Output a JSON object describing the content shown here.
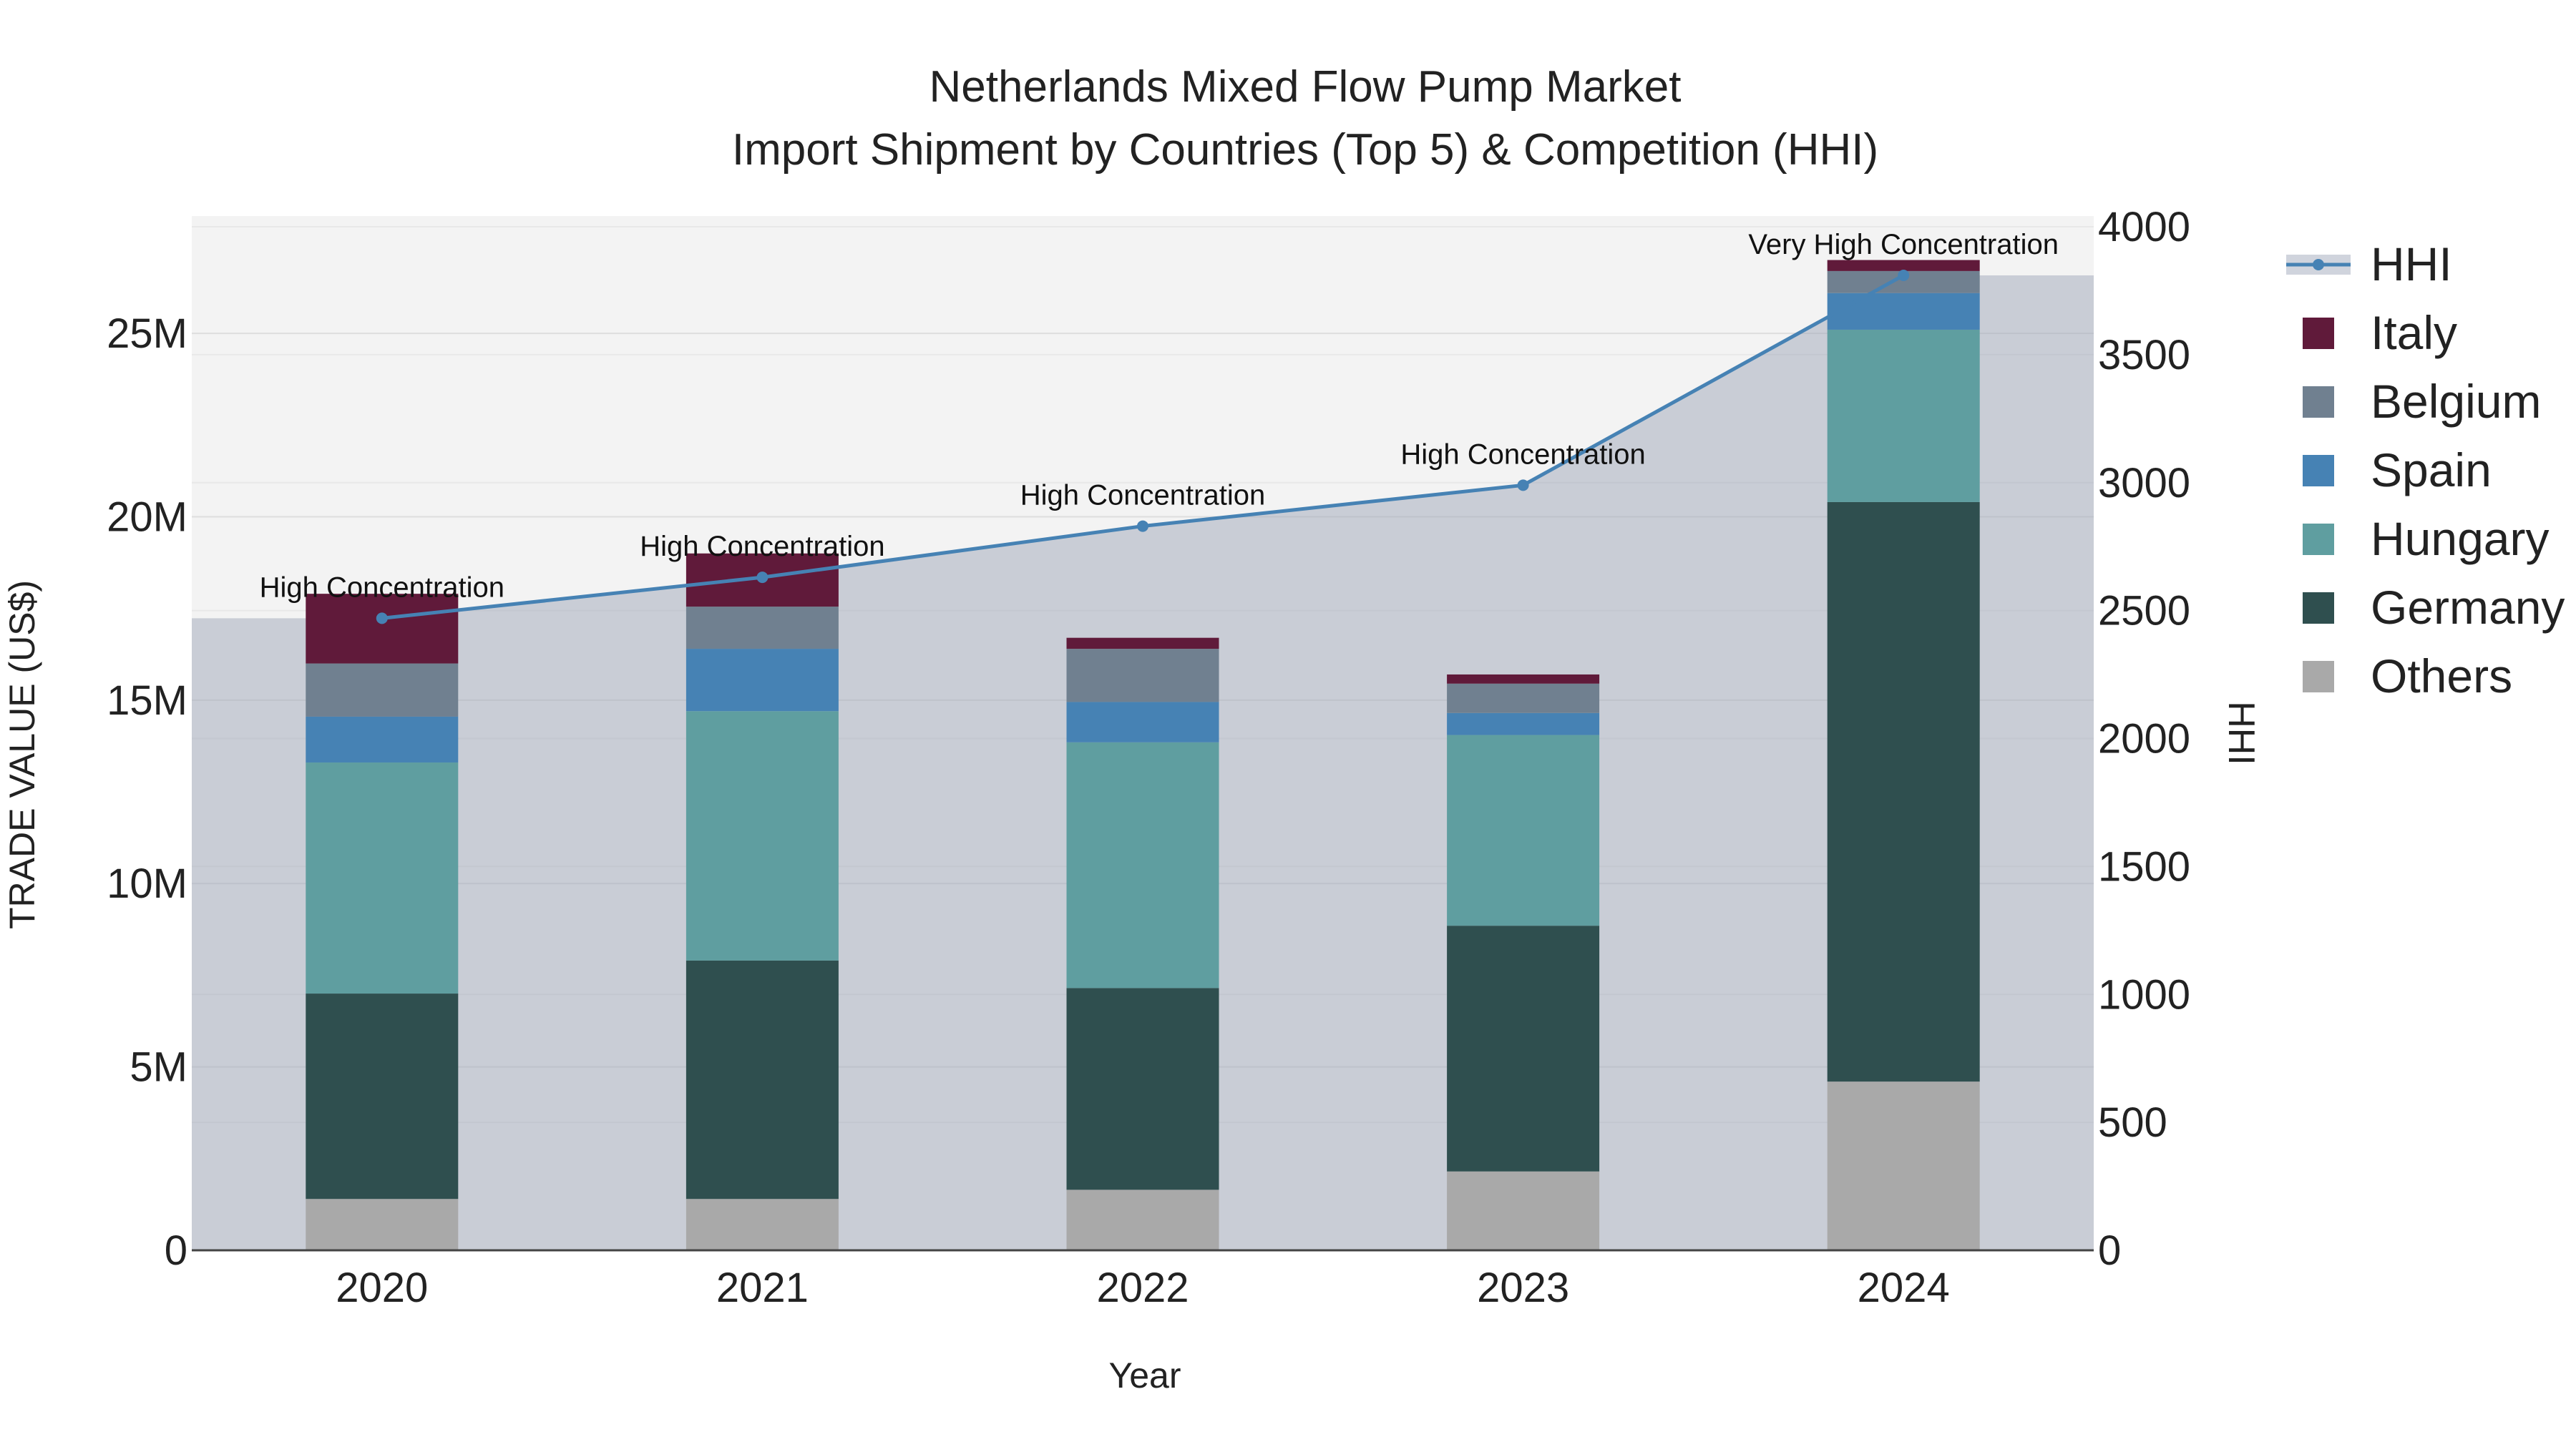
{
  "chart_data": {
    "type": "bar",
    "stacked": true,
    "title_line1": "Netherlands Mixed Flow Pump Market",
    "title_line2": "Import Shipment by Countries (Top 5) & Competition (HHI)",
    "xlabel": "Year",
    "ylabel": "TRADE VALUE (US$)",
    "y2label": "HHI",
    "categories": [
      "2020",
      "2021",
      "2022",
      "2023",
      "2024"
    ],
    "ylim": [
      0,
      28200000
    ],
    "y_ticks": [
      0,
      5000000,
      10000000,
      15000000,
      20000000,
      25000000
    ],
    "y_tick_labels": [
      "0",
      "5M",
      "10M",
      "15M",
      "20M",
      "25M"
    ],
    "y2lim": [
      0,
      4000
    ],
    "y2_ticks": [
      0,
      500,
      1000,
      1500,
      2000,
      2500,
      3000,
      3500,
      4000
    ],
    "y2_tick_labels": [
      "0",
      "500",
      "1000",
      "1500",
      "2000",
      "2500",
      "3000",
      "3500",
      "4000"
    ],
    "series": [
      {
        "name": "Others",
        "color": "#a9a9a9",
        "values": [
          1400000,
          1400000,
          1650000,
          2150000,
          4600000
        ]
      },
      {
        "name": "Germany",
        "color": "#2f4f4f",
        "values": [
          5600000,
          6500000,
          5500000,
          6700000,
          15800000
        ]
      },
      {
        "name": "Hungary",
        "color": "#5f9ea0",
        "values": [
          6300000,
          6800000,
          6700000,
          5200000,
          4700000
        ]
      },
      {
        "name": "Spain",
        "color": "#4682b4",
        "values": [
          1250000,
          1700000,
          1100000,
          600000,
          1000000
        ]
      },
      {
        "name": "Belgium",
        "color": "#708090",
        "values": [
          1450000,
          1150000,
          1450000,
          800000,
          600000
        ]
      },
      {
        "name": "Italy",
        "color": "#601a3a",
        "values": [
          1900000,
          1450000,
          300000,
          250000,
          300000
        ]
      }
    ],
    "hhi": {
      "name": "HHI",
      "color": "#4682b4",
      "values": [
        2470,
        2630,
        2830,
        2990,
        3810
      ],
      "annotations": [
        "High Concentration",
        "High Concentration",
        "High Concentration",
        "High Concentration",
        "Very High Concentration"
      ]
    },
    "legend_order": [
      "HHI",
      "Italy",
      "Belgium",
      "Spain",
      "Hungary",
      "Germany",
      "Others"
    ],
    "legend_position": "right",
    "grid": true
  }
}
